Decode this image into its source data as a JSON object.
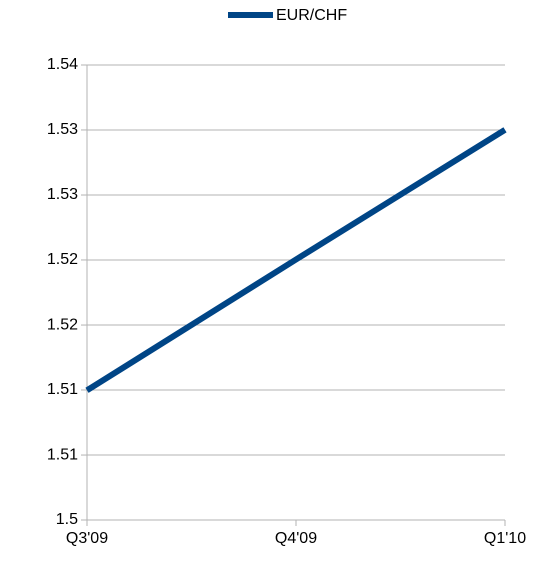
{
  "chart_data": {
    "type": "line",
    "categories": [
      "Q3'09",
      "Q4'09",
      "Q1'10"
    ],
    "series": [
      {
        "name": "EUR/CHF",
        "color": "#004586",
        "values": [
          1.5114,
          1.5229,
          1.5343
        ]
      }
    ],
    "ylim": [
      1.5,
      1.54
    ],
    "yticks": [
      1.5,
      {
        "value": 1.50571,
        "label": "1.51"
      },
      {
        "value": 1.51143,
        "label": "1.51"
      },
      {
        "value": 1.51714,
        "label": "1.52"
      },
      {
        "value": 1.52286,
        "label": "1.52"
      },
      {
        "value": 1.52857,
        "label": "1.53"
      },
      {
        "value": 1.53429,
        "label": "1.53"
      },
      1.54
    ],
    "grid": true,
    "legend": "top"
  }
}
